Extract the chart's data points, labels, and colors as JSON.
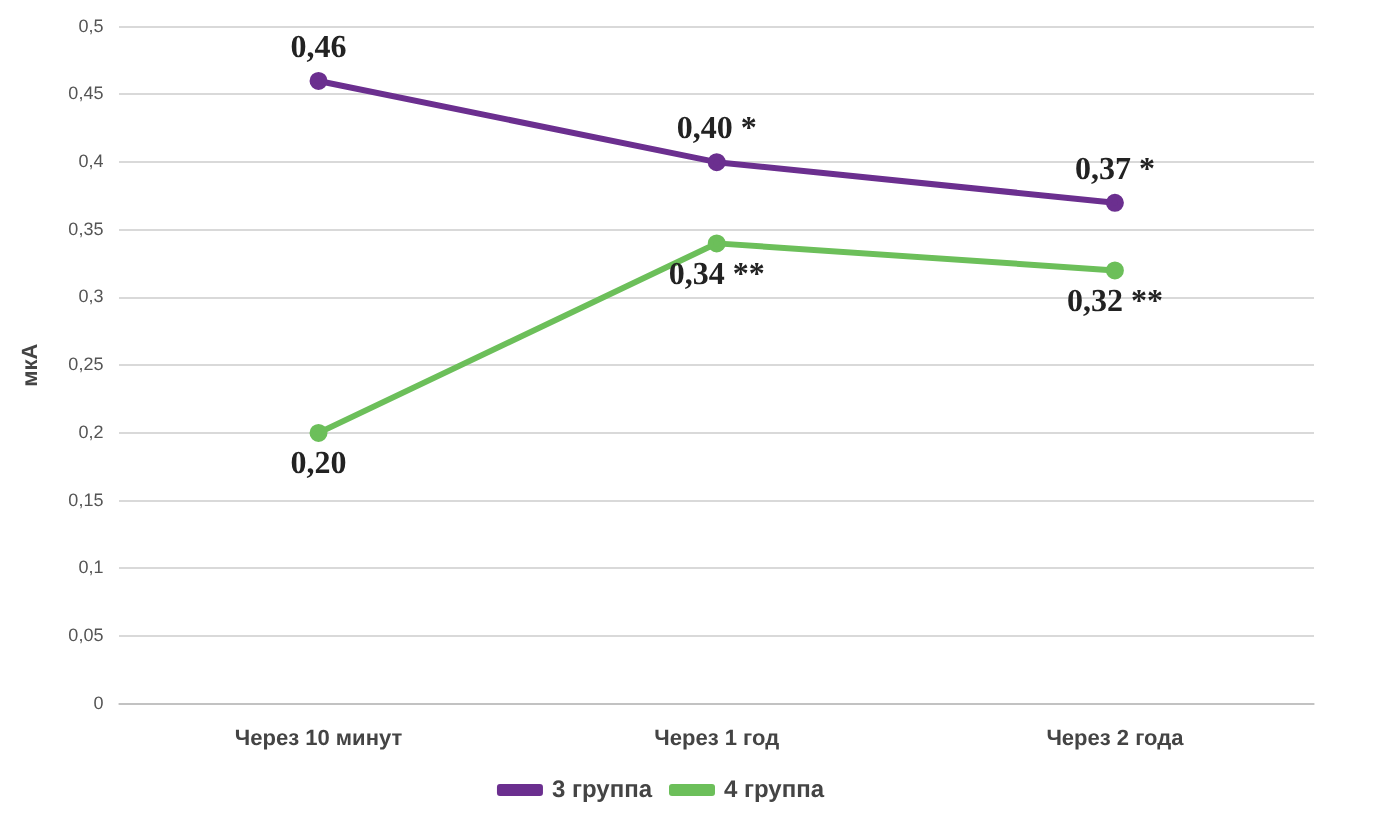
{
  "chart_data": {
    "type": "line",
    "ylabel": "мкА",
    "categories": [
      "Через 10 минут",
      "Через 1 год",
      "Через 2 года"
    ],
    "series": [
      {
        "name": "3 группа",
        "color": "#6b2f8f",
        "values": [
          0.46,
          0.4,
          0.37
        ],
        "value_labels": [
          "0,46",
          "0,40 *",
          "0,37 *"
        ]
      },
      {
        "name": "4 группа",
        "color": "#6cbf5a",
        "values": [
          0.2,
          0.34,
          0.32
        ],
        "value_labels": [
          "0,20",
          "0,34 **",
          "0,32 **"
        ]
      }
    ],
    "ylim": [
      0,
      0.5
    ],
    "yticks": [
      0,
      {
        "value": 0.05,
        "label": "0,05"
      },
      {
        "value": 0.1,
        "label": "0,1"
      },
      {
        "value": 0.15,
        "label": "0,15"
      },
      {
        "value": 0.2,
        "label": "0,2"
      },
      {
        "value": 0.25,
        "label": "0,25"
      },
      {
        "value": 0.3,
        "label": "0,3"
      },
      {
        "value": 0.35,
        "label": "0,35"
      },
      {
        "value": 0.4,
        "label": "0,4"
      },
      {
        "value": 0.45,
        "label": "0,45"
      },
      {
        "value": 0.5,
        "label": "0,5"
      }
    ],
    "grid": "y",
    "legend": "bottom",
    "marker": "circle",
    "line_style": "solid"
  }
}
